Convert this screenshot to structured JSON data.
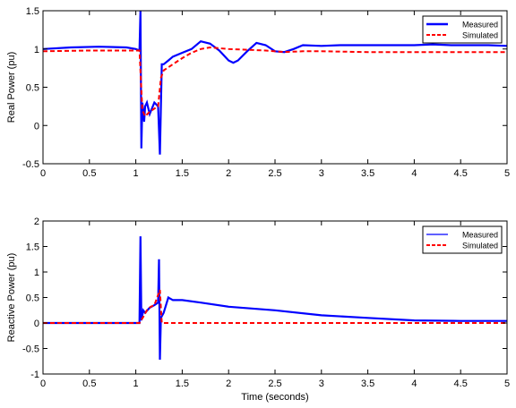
{
  "colors": {
    "measured": "#0000ff",
    "simulated": "#ff0000",
    "axis": "#000000",
    "background": "#ffffff"
  },
  "chart_data": [
    {
      "type": "line",
      "title": "",
      "xlabel": "",
      "ylabel": "Real Power (pu)",
      "xlim": [
        0,
        5
      ],
      "ylim": [
        -0.5,
        1.5
      ],
      "xticks": [
        "0",
        "0.5",
        "1",
        "1.5",
        "2",
        "2.5",
        "3",
        "3.5",
        "4",
        "4.5",
        "5"
      ],
      "yticks": [
        "-0.5",
        "0",
        "0.5",
        "1",
        "1.5"
      ],
      "grid": false,
      "legend_position": "top-right",
      "series": [
        {
          "name": "Measured",
          "style": "solid",
          "x": [
            0,
            0.3,
            0.6,
            0.9,
            1.0,
            1.04,
            1.05,
            1.06,
            1.07,
            1.09,
            1.1,
            1.12,
            1.15,
            1.2,
            1.24,
            1.26,
            1.28,
            1.3,
            1.35,
            1.4,
            1.5,
            1.6,
            1.7,
            1.8,
            1.9,
            2.0,
            2.05,
            2.1,
            2.2,
            2.3,
            2.4,
            2.5,
            2.6,
            2.7,
            2.8,
            3.0,
            3.2,
            3.4,
            3.6,
            3.8,
            4.0,
            4.2,
            4.4,
            4.6,
            4.8,
            5.0
          ],
          "y": [
            1.0,
            1.02,
            1.03,
            1.02,
            1.0,
            0.98,
            1.5,
            -0.3,
            0.3,
            0.05,
            0.25,
            0.3,
            0.15,
            0.3,
            0.25,
            -0.38,
            0.8,
            0.8,
            0.85,
            0.9,
            0.95,
            1.0,
            1.1,
            1.07,
            0.98,
            0.85,
            0.82,
            0.85,
            0.97,
            1.08,
            1.05,
            0.97,
            0.96,
            1.0,
            1.05,
            1.04,
            1.05,
            1.05,
            1.05,
            1.05,
            1.05,
            1.06,
            1.05,
            1.05,
            1.05,
            1.04
          ]
        },
        {
          "name": "Simulated",
          "style": "dashed",
          "x": [
            0,
            0.5,
            1.0,
            1.04,
            1.07,
            1.1,
            1.15,
            1.2,
            1.24,
            1.27,
            1.3,
            1.4,
            1.5,
            1.6,
            1.7,
            1.8,
            2.0,
            2.2,
            2.4,
            2.6,
            2.8,
            3.0,
            3.5,
            4.0,
            4.5,
            5.0
          ],
          "y": [
            0.97,
            0.98,
            0.98,
            0.98,
            0.2,
            0.12,
            0.18,
            0.22,
            0.25,
            0.62,
            0.72,
            0.8,
            0.88,
            0.95,
            1.0,
            1.02,
            1.0,
            0.99,
            0.98,
            0.96,
            0.97,
            0.97,
            0.96,
            0.96,
            0.96,
            0.96
          ]
        }
      ]
    },
    {
      "type": "line",
      "title": "",
      "xlabel": "Time (seconds)",
      "ylabel": "Reactive Power (pu)",
      "xlim": [
        0,
        5
      ],
      "ylim": [
        -1,
        2
      ],
      "xticks": [
        "0",
        "0.5",
        "1",
        "1.5",
        "2",
        "2.5",
        "3",
        "3.5",
        "4",
        "4.5",
        "5"
      ],
      "yticks": [
        "-1",
        "-0.5",
        "0",
        "0.5",
        "1",
        "1.5",
        "2"
      ],
      "grid": false,
      "legend_position": "top-right",
      "series": [
        {
          "name": "Measured",
          "style": "solid",
          "x": [
            0,
            0.5,
            1.0,
            1.04,
            1.05,
            1.06,
            1.08,
            1.1,
            1.15,
            1.2,
            1.24,
            1.25,
            1.26,
            1.27,
            1.3,
            1.35,
            1.4,
            1.5,
            1.7,
            2.0,
            2.5,
            3.0,
            3.5,
            4.0,
            4.5,
            5.0
          ],
          "y": [
            0.0,
            0.0,
            0.0,
            0.0,
            1.7,
            0.05,
            0.25,
            0.2,
            0.3,
            0.35,
            0.4,
            1.25,
            -0.72,
            0.1,
            0.2,
            0.5,
            0.45,
            0.45,
            0.4,
            0.32,
            0.25,
            0.15,
            0.1,
            0.05,
            0.04,
            0.04
          ]
        },
        {
          "name": "Simulated",
          "style": "dashed",
          "x": [
            0,
            1.0,
            1.04,
            1.08,
            1.12,
            1.16,
            1.2,
            1.24,
            1.26,
            1.28,
            1.32,
            1.5,
            2.0,
            3.0,
            4.0,
            5.0
          ],
          "y": [
            0.0,
            0.0,
            0.0,
            0.12,
            0.25,
            0.32,
            0.35,
            0.55,
            0.65,
            0.0,
            0.0,
            0.0,
            0.0,
            0.0,
            0.0,
            0.0
          ]
        }
      ]
    }
  ]
}
